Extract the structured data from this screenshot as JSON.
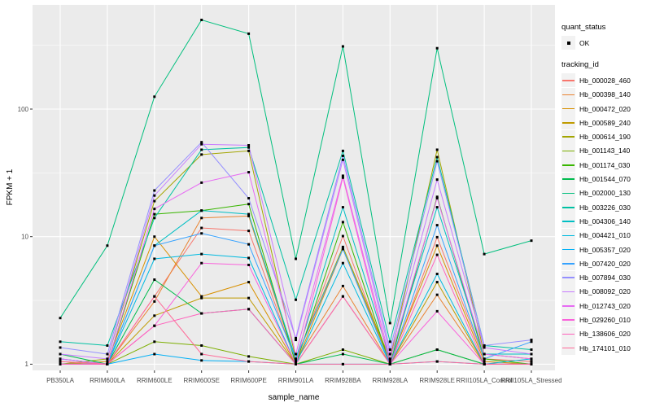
{
  "chart_data": {
    "type": "line",
    "title": "",
    "xlabel": "sample_name",
    "ylabel": "FPKM + 1",
    "y_scale": "log10",
    "y_tick_labels": [
      "1",
      "10",
      "100"
    ],
    "y_tick_values": [
      1,
      10,
      100
    ],
    "y_minor_values": [
      3.162,
      31.62,
      316.2
    ],
    "ylim": [
      0.89,
      655
    ],
    "grid": "white-on-gray",
    "legend_position": "right",
    "panel_background": "#EBEBEB",
    "grid_color": "#FFFFFF",
    "point_shape": "filled-square",
    "point_color": "#000000",
    "categories": [
      "PB350LA",
      "RRIM600LA",
      "RRIM600LE",
      "RRIM600SE",
      "RRIM600PE",
      "RRIM901LA",
      "RRIM928BA",
      "RRIM928LA",
      "RRIM928LE",
      "RRII105LA_Control",
      "RRII105LA_Stressed"
    ],
    "series": [
      {
        "name": "Hb_000028_460",
        "color": "#F8766D",
        "values": [
          1.0,
          1.0,
          3.4,
          11.7,
          11.1,
          1.05,
          10.1,
          1.0,
          9.9,
          1.1,
          1.05
        ]
      },
      {
        "name": "Hb_000398_140",
        "color": "#EA8331",
        "values": [
          1.05,
          1.0,
          3.1,
          14.0,
          14.5,
          1.05,
          4.1,
          1.0,
          3.5,
          1.0,
          1.0
        ]
      },
      {
        "name": "Hb_000472_020",
        "color": "#D89000",
        "values": [
          1.0,
          1.05,
          10.0,
          3.4,
          4.4,
          1.0,
          8.0,
          1.05,
          8.5,
          1.05,
          1.0
        ]
      },
      {
        "name": "Hb_000589_240",
        "color": "#C09B00",
        "values": [
          1.0,
          1.0,
          2.4,
          3.3,
          3.3,
          1.0,
          3.4,
          1.0,
          4.4,
          1.0,
          1.0
        ]
      },
      {
        "name": "Hb_000614_190",
        "color": "#A3A500",
        "values": [
          1.0,
          1.1,
          19.0,
          44.0,
          47.0,
          1.1,
          8.3,
          1.1,
          48.0,
          1.2,
          1.1
        ]
      },
      {
        "name": "Hb_001143_140",
        "color": "#7CAE00",
        "values": [
          1.0,
          1.0,
          1.5,
          1.4,
          1.15,
          1.0,
          1.3,
          1.0,
          1.3,
          1.0,
          1.0
        ]
      },
      {
        "name": "Hb_001174_030",
        "color": "#39B600",
        "values": [
          1.0,
          1.0,
          15.0,
          16.0,
          18.0,
          1.0,
          13.0,
          1.0,
          20.5,
          1.1,
          1.0
        ]
      },
      {
        "name": "Hb_001544_070",
        "color": "#00BB4E",
        "values": [
          1.2,
          1.0,
          4.6,
          2.5,
          2.7,
          1.0,
          1.2,
          1.0,
          1.3,
          1.0,
          1.0
        ]
      },
      {
        "name": "Hb_002000_130",
        "color": "#00BF7D",
        "values": [
          2.3,
          8.5,
          125,
          500,
          390,
          6.7,
          310,
          2.1,
          300,
          7.3,
          9.3
        ]
      },
      {
        "name": "Hb_003226_030",
        "color": "#00C1A3",
        "values": [
          1.5,
          1.4,
          14.0,
          48.0,
          50.0,
          3.2,
          47.0,
          1.5,
          42.0,
          1.4,
          1.3
        ]
      },
      {
        "name": "Hb_004306_140",
        "color": "#00BFC4",
        "values": [
          1.1,
          1.0,
          8.5,
          16.0,
          15.0,
          1.1,
          17.0,
          1.1,
          17.0,
          1.2,
          1.2
        ]
      },
      {
        "name": "Hb_004421_010",
        "color": "#00BAE0",
        "values": [
          1.0,
          1.0,
          6.7,
          7.3,
          6.8,
          1.0,
          6.2,
          1.0,
          5.1,
          1.0,
          1.1
        ]
      },
      {
        "name": "Hb_005357_020",
        "color": "#00B0F6",
        "values": [
          1.0,
          1.0,
          1.2,
          1.07,
          1.05,
          1.0,
          1.0,
          1.0,
          1.05,
          1.0,
          1.0
        ]
      },
      {
        "name": "Hb_007420_020",
        "color": "#35A2FF",
        "values": [
          1.1,
          1.0,
          8.5,
          10.6,
          8.7,
          1.1,
          8.0,
          1.0,
          12.3,
          1.1,
          1.5
        ]
      },
      {
        "name": "Hb_007894_030",
        "color": "#9590FF",
        "values": [
          1.35,
          1.2,
          23.0,
          55.0,
          20.0,
          1.6,
          43.0,
          1.3,
          39.0,
          1.4,
          1.55
        ]
      },
      {
        "name": "Hb_008092_020",
        "color": "#C77CFF",
        "values": [
          1.2,
          1.1,
          21.0,
          53.0,
          52.0,
          1.55,
          40.0,
          1.2,
          28.0,
          1.35,
          1.2
        ]
      },
      {
        "name": "Hb_012743_020",
        "color": "#E76BF3",
        "values": [
          1.1,
          1.0,
          16.5,
          26.5,
          32.0,
          1.2,
          30.0,
          1.1,
          20.0,
          1.2,
          1.1
        ]
      },
      {
        "name": "Hb_029260_010",
        "color": "#FA62DB",
        "values": [
          1.0,
          1.0,
          2.0,
          6.2,
          6.0,
          1.0,
          29.0,
          1.0,
          2.6,
          1.0,
          1.0
        ]
      },
      {
        "name": "Hb_138606_020",
        "color": "#FF62BC",
        "values": [
          1.0,
          1.0,
          2.0,
          2.5,
          2.7,
          1.0,
          3.4,
          1.0,
          7.2,
          1.0,
          1.0
        ]
      },
      {
        "name": "Hb_174101_010",
        "color": "#FF6A98",
        "values": [
          1.05,
          1.0,
          3.4,
          1.2,
          1.05,
          1.0,
          1.0,
          1.0,
          1.05,
          1.0,
          1.0
        ]
      }
    ]
  },
  "legend": {
    "quant_status_title": "quant_status",
    "quant_status_items": [
      {
        "label": "OK"
      }
    ],
    "tracking_title": "tracking_id"
  }
}
